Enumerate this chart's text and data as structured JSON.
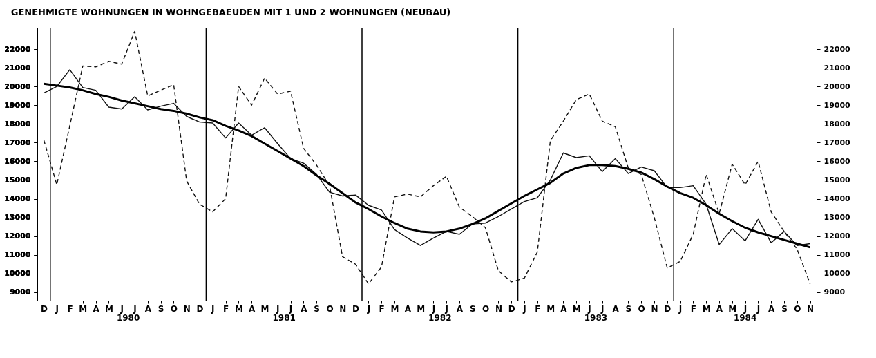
{
  "chart_data": {
    "type": "line",
    "title": "GENEHMIGTE WOHNUNGEN IN WOHNGEBAEUDEN MIT 1 UND 2 WOHNUNGEN (NEUBAU)",
    "categories": [
      "D",
      "J",
      "F",
      "M",
      "A",
      "M",
      "J",
      "J",
      "A",
      "S",
      "O",
      "N",
      "D",
      "J",
      "F",
      "M",
      "A",
      "M",
      "J",
      "J",
      "A",
      "S",
      "O",
      "N",
      "D",
      "J",
      "F",
      "M",
      "A",
      "M",
      "J",
      "J",
      "A",
      "S",
      "O",
      "N",
      "D",
      "J",
      "F",
      "M",
      "A",
      "M",
      "J",
      "J",
      "A",
      "S",
      "O",
      "N",
      "D",
      "J",
      "F",
      "M",
      "A",
      "M",
      "J",
      "J",
      "A",
      "S",
      "O",
      "N"
    ],
    "ylim": [
      8550,
      23150
    ],
    "yticks": [
      9000,
      10000,
      11000,
      12000,
      13000,
      14000,
      15000,
      16000,
      17000,
      18000,
      19000,
      20000,
      21000,
      22000
    ],
    "y2lim": [
      8550,
      23150
    ],
    "y2ticks": [
      9000,
      10000,
      11000,
      12000,
      13000,
      14000,
      15000,
      16000,
      17000,
      18000,
      19000,
      20000,
      21000,
      22000
    ],
    "series": [
      {
        "color": "#111111",
        "line_style": "dashed",
        "values": [
          17150,
          14750,
          17900,
          21100,
          21050,
          21350,
          21200,
          22950,
          19500,
          19800,
          20100,
          14950,
          13700,
          13300,
          14000,
          20000,
          19000,
          20450,
          19600,
          19750,
          16700,
          15800,
          14700,
          10900,
          10500,
          9450,
          10350,
          14100,
          14250,
          14100,
          14700,
          15200,
          13550,
          13050,
          12450,
          10150,
          9550,
          9750,
          11150,
          17100,
          18150,
          19300,
          19600,
          18150,
          17850,
          15650,
          15300,
          13000,
          10300,
          10650,
          12100,
          15300,
          13200,
          15850,
          14750,
          16000,
          13300,
          12250,
          11300,
          9450
        ]
      },
      {
        "color": "#111111",
        "line_style": "solid",
        "values": [
          19650,
          20000,
          20900,
          19950,
          19800,
          18900,
          18800,
          19450,
          18750,
          18950,
          19100,
          18400,
          18100,
          18050,
          17250,
          18050,
          17400,
          17800,
          16950,
          16150,
          15900,
          15300,
          14350,
          14150,
          14200,
          13650,
          13400,
          12350,
          11900,
          11500,
          11900,
          12250,
          12100,
          12650,
          12700,
          13050,
          13450,
          13850,
          14050,
          15000,
          16450,
          16200,
          16300,
          15450,
          16150,
          15350,
          15700,
          15500,
          14600,
          14600,
          14700,
          13700,
          11550,
          12400,
          11750,
          12900,
          11650,
          12250,
          11500,
          11600
        ]
      },
      {
        "color": "#000000",
        "line_style": "solid",
        "values": [
          20150,
          20050,
          19950,
          19800,
          19600,
          19450,
          19250,
          19100,
          18950,
          18800,
          18700,
          18550,
          18350,
          18200,
          17900,
          17650,
          17350,
          16950,
          16550,
          16150,
          15750,
          15250,
          14800,
          14300,
          13800,
          13450,
          13050,
          12700,
          12400,
          12250,
          12200,
          12250,
          12400,
          12650,
          12950,
          13350,
          13750,
          14150,
          14500,
          14850,
          15350,
          15650,
          15800,
          15800,
          15750,
          15600,
          15400,
          15050,
          14650,
          14300,
          14050,
          13650,
          13200,
          12800,
          12450,
          12200,
          12000,
          11800,
          11600,
          11400
        ]
      }
    ],
    "annotations": [
      "1980",
      "1981",
      "1982",
      "1983",
      "1984"
    ],
    "grid": false,
    "marker": "none"
  }
}
